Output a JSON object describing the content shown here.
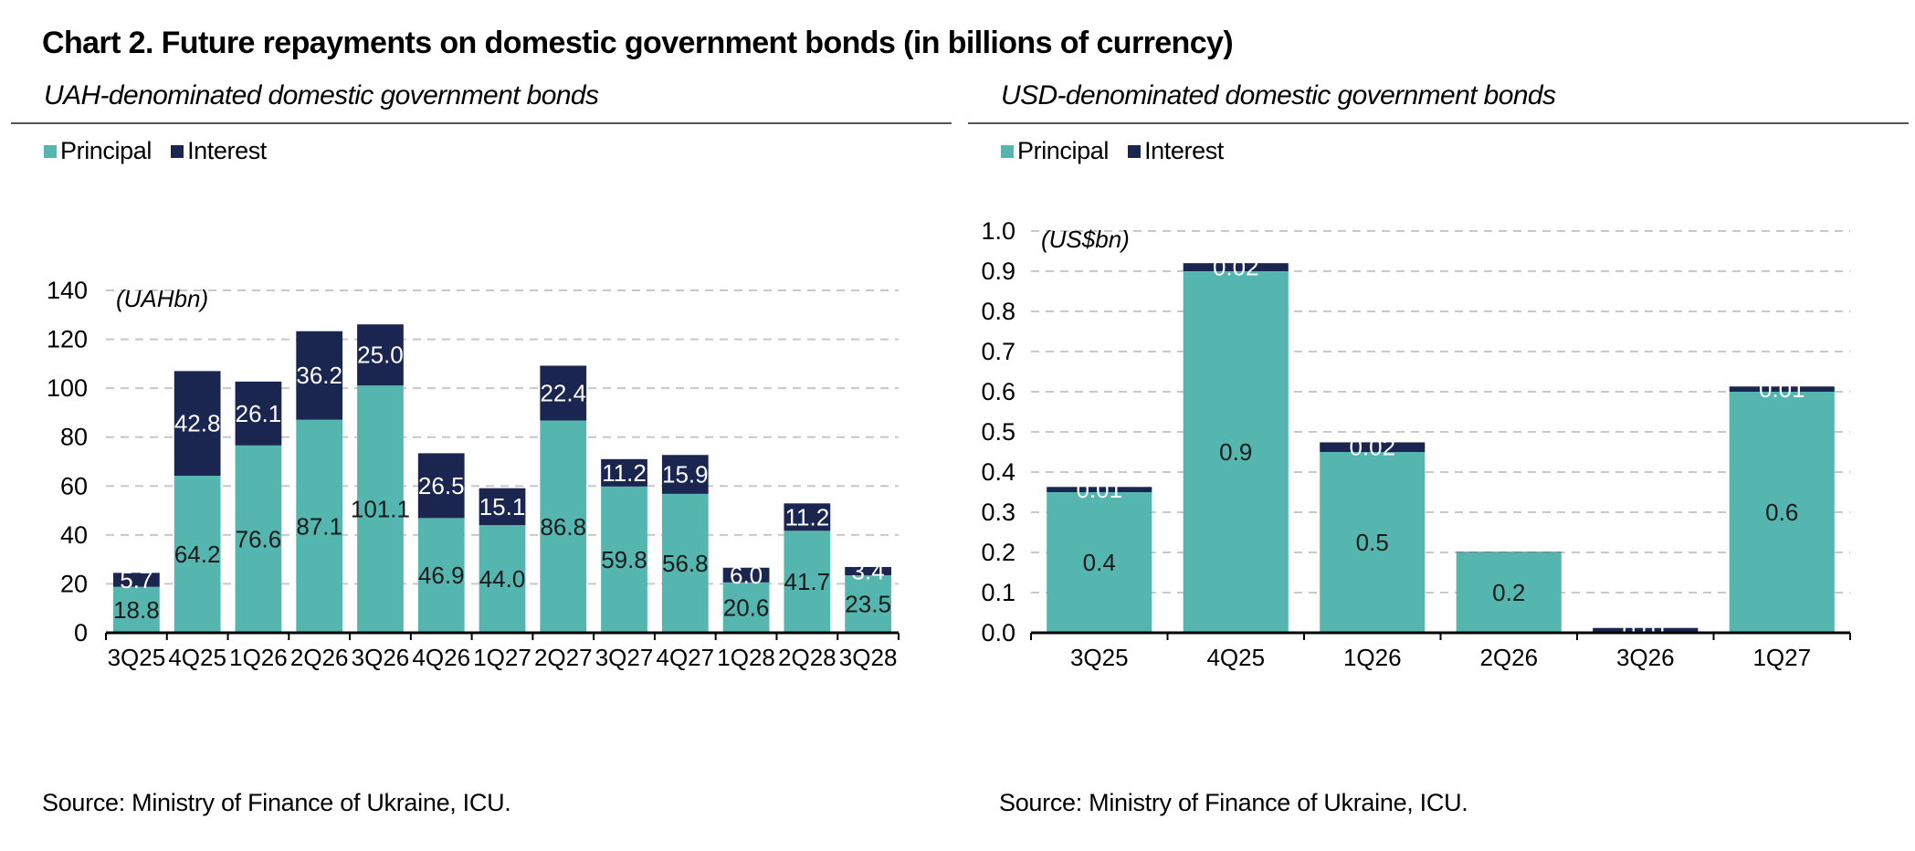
{
  "title": "Chart 2. Future repayments on domestic government bonds (in billions of currency)",
  "colors": {
    "principal": "#55b6b0",
    "interest": "#1a2650",
    "grid": "#c8c8c8"
  },
  "chart_data": [
    {
      "type": "bar",
      "stacked": true,
      "title": "UAH-denominated domestic government bonds",
      "unit_label": "(UAHbn)",
      "categories": [
        "3Q25",
        "4Q25",
        "1Q26",
        "2Q26",
        "3Q26",
        "4Q26",
        "1Q27",
        "2Q27",
        "3Q27",
        "4Q27",
        "1Q28",
        "2Q28",
        "3Q28"
      ],
      "series": [
        {
          "name": "Principal",
          "values": [
            18.8,
            64.2,
            76.6,
            87.1,
            101.1,
            46.9,
            44.0,
            86.8,
            59.8,
            56.8,
            20.6,
            41.7,
            23.5
          ],
          "labels": [
            "18.8",
            "64.2",
            "76.6",
            "87.1",
            "101.1",
            "46.9",
            "44.0",
            "86.8",
            "59.8",
            "56.8",
            "20.6",
            "41.7",
            "23.5"
          ]
        },
        {
          "name": "Interest",
          "values": [
            5.7,
            42.8,
            26.1,
            36.2,
            25.0,
            26.5,
            15.1,
            22.4,
            11.2,
            15.9,
            6.0,
            11.2,
            3.4
          ],
          "labels": [
            "5.7",
            "42.8",
            "26.1",
            "36.2",
            "25.0",
            "26.5",
            "15.1",
            "22.4",
            "11.2",
            "15.9",
            "6.0",
            "11.2",
            "3.4"
          ]
        }
      ],
      "ylim": [
        0,
        140
      ],
      "yticks": [
        "0",
        "20",
        "40",
        "60",
        "80",
        "100",
        "120",
        "140"
      ],
      "legend": "top-left",
      "grid": true,
      "source": "Source: Ministry of Finance of Ukraine, ICU."
    },
    {
      "type": "bar",
      "stacked": true,
      "title": "USD-denominated domestic government bonds",
      "unit_label": "(US$bn)",
      "categories": [
        "3Q25",
        "4Q25",
        "1Q26",
        "2Q26",
        "3Q26",
        "1Q27"
      ],
      "series": [
        {
          "name": "Principal",
          "values": [
            0.35,
            0.9,
            0.45,
            0.2,
            0.0,
            0.6
          ],
          "labels": [
            "0.4",
            "0.9",
            "0.5",
            "0.2",
            "",
            "0.6"
          ]
        },
        {
          "name": "Interest",
          "values": [
            0.013,
            0.02,
            0.024,
            0.001,
            0.012,
            0.013
          ],
          "labels": [
            "0.01",
            "0.02",
            "0.02",
            "",
            "0.01",
            "0.01"
          ]
        }
      ],
      "ylim": [
        0,
        1.0
      ],
      "yticks": [
        "0.0",
        "0.1",
        "0.2",
        "0.3",
        "0.4",
        "0.5",
        "0.6",
        "0.7",
        "0.8",
        "0.9",
        "1.0"
      ],
      "legend": "top-left",
      "grid": true,
      "source": "Source: Ministry of Finance of Ukraine, ICU."
    }
  ]
}
